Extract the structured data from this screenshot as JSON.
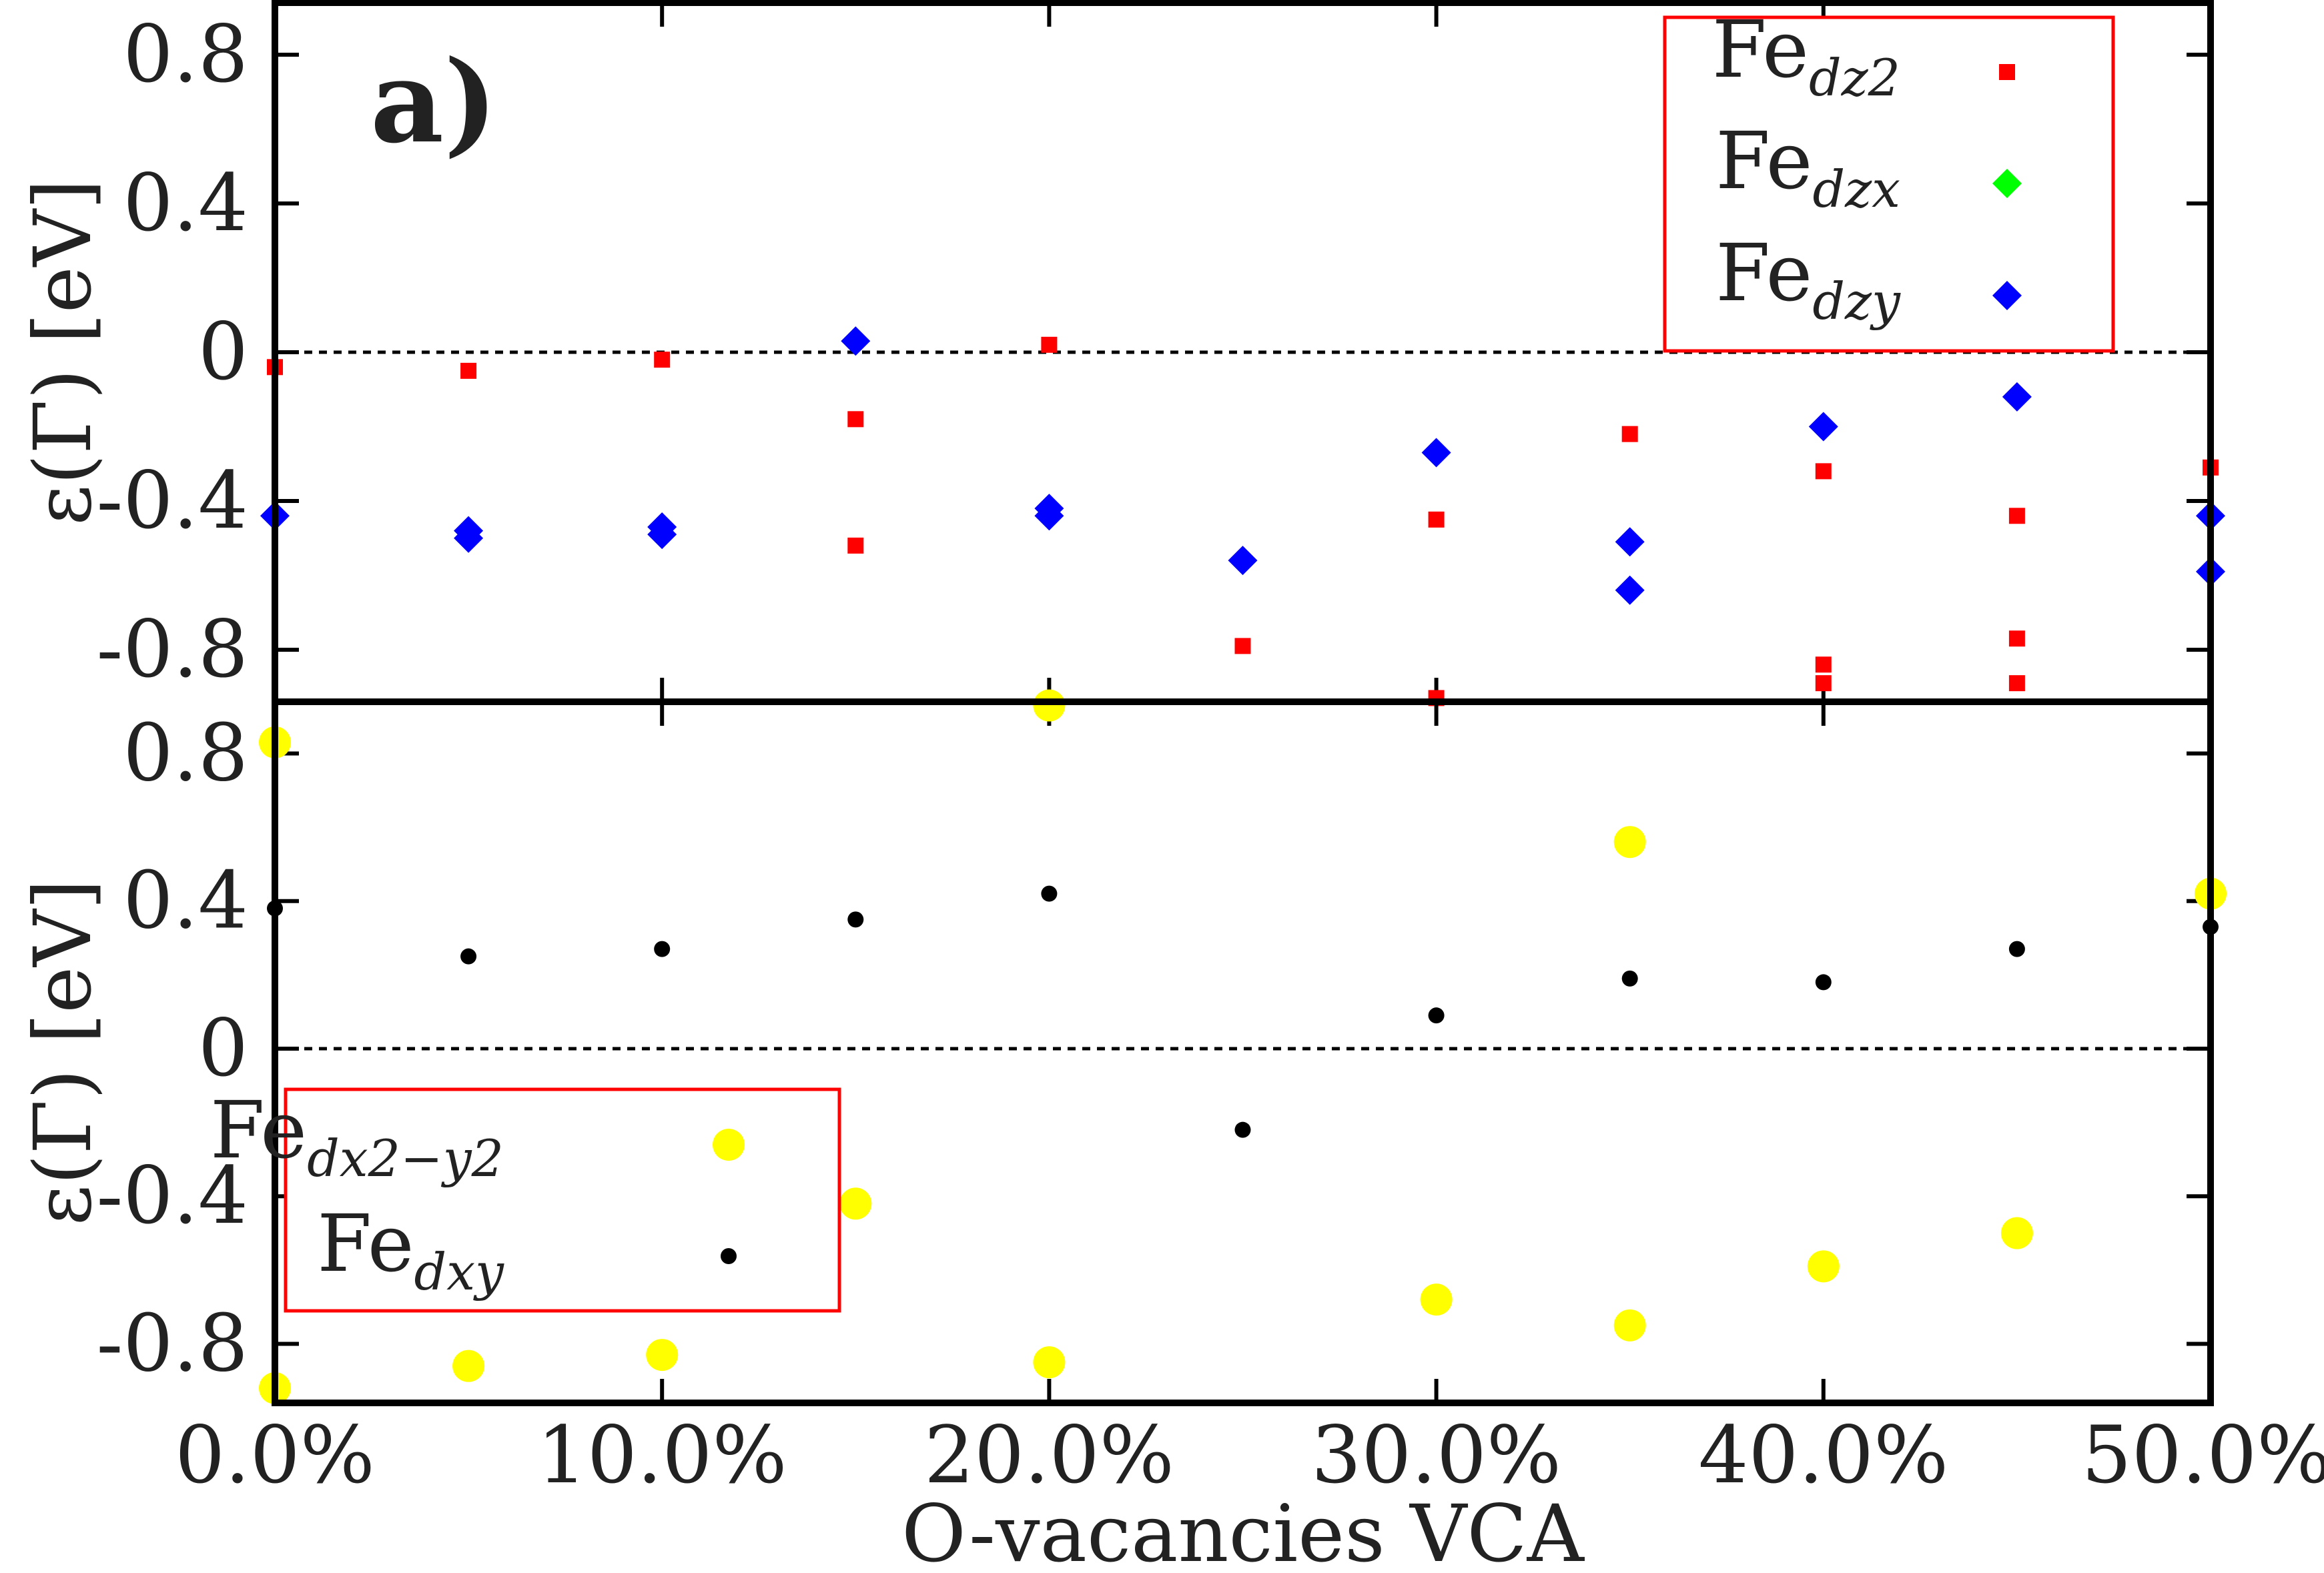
{
  "chart_data": {
    "type": "scatter",
    "x_title": "O-vacancies VCA",
    "x_ticks": [
      "0.0%",
      "10.0%",
      "20.0%",
      "30.0%",
      "40.0%",
      "50.0%"
    ],
    "x_tick_values": [
      0,
      10,
      20,
      30,
      40,
      50
    ],
    "xlim": [
      0,
      50
    ],
    "panels": [
      {
        "label": "a)",
        "ylabel": "ε(Γ) [eV]",
        "ylim": [
          -0.94,
          0.94
        ],
        "y_ticks": [
          "0.8",
          "0.4",
          "0",
          "-0.4",
          "-0.8"
        ],
        "y_tick_values": [
          0.8,
          0.4,
          0,
          -0.4,
          -0.8
        ],
        "legend_position": "top-right",
        "series": [
          {
            "name": "Fe",
            "sub": "z2",
            "marker": "square",
            "color": "#ff0000",
            "x": [
              0,
              5,
              10,
              15,
              15,
              20,
              25,
              30,
              30,
              35,
              40,
              40,
              40,
              45,
              45,
              45,
              50
            ],
            "y": [
              -0.04,
              -0.05,
              -0.02,
              -0.18,
              -0.52,
              0.02,
              -0.79,
              -0.45,
              -0.93,
              -0.22,
              -0.32,
              -0.84,
              -0.89,
              -0.44,
              -0.77,
              -0.89,
              -0.31
            ]
          },
          {
            "name": "Fe",
            "sub": "zx",
            "marker": "diamond",
            "color": "#00ff00",
            "x": [],
            "y": []
          },
          {
            "name": "Fe",
            "sub": "zy",
            "marker": "diamond",
            "color": "#0000ff",
            "x": [
              0,
              5,
              5,
              10,
              10,
              15,
              20,
              20,
              25,
              30,
              35,
              35,
              40,
              45,
              50,
              50
            ],
            "y": [
              -0.44,
              -0.48,
              -0.5,
              -0.47,
              -0.49,
              0.03,
              -0.42,
              -0.44,
              -0.56,
              -0.27,
              -0.51,
              -0.64,
              -0.2,
              -0.12,
              -0.44,
              -0.59
            ]
          }
        ]
      },
      {
        "label": "",
        "ylabel": "ε(Γ) [eV]",
        "ylim": [
          -0.96,
          0.94
        ],
        "y_ticks": [
          "0.8",
          "0.4",
          "0",
          "-0.4",
          "-0.8"
        ],
        "y_tick_values": [
          0.8,
          0.4,
          0,
          -0.4,
          -0.8
        ],
        "legend_position": "bottom-left",
        "series": [
          {
            "name": "Fe",
            "sub": "x2−y2",
            "marker": "circle",
            "color": "#ffff00",
            "x": [
              0,
              0,
              5,
              10,
              15,
              20,
              20,
              30,
              35,
              35,
              40,
              45,
              50
            ],
            "y": [
              0.83,
              -0.92,
              -0.86,
              -0.83,
              -0.42,
              0.93,
              -0.85,
              -0.68,
              0.56,
              -0.75,
              -0.59,
              -0.5,
              0.42
            ]
          },
          {
            "name": "Fe",
            "sub": "xy",
            "marker": "dot",
            "color": "#000000",
            "x": [
              0,
              5,
              10,
              15,
              20,
              25,
              30,
              35,
              40,
              45,
              50
            ],
            "y": [
              0.38,
              0.25,
              0.27,
              0.35,
              0.42,
              -0.22,
              0.09,
              0.19,
              0.18,
              0.27,
              0.33
            ]
          }
        ]
      }
    ]
  }
}
